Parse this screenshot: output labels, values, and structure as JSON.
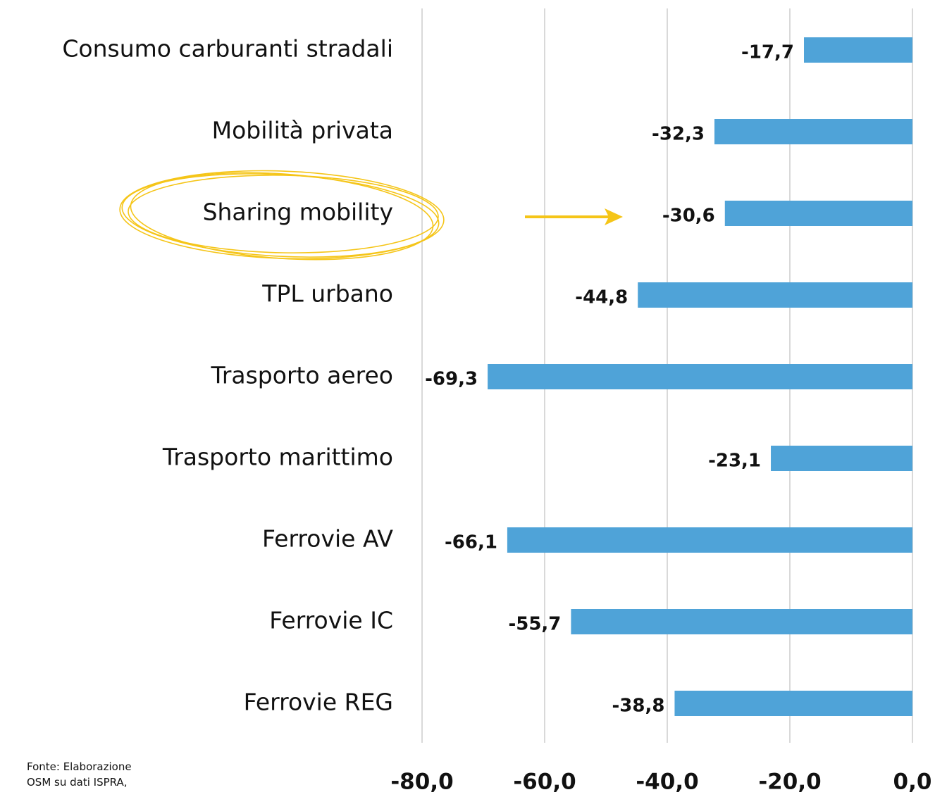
{
  "chart_data": {
    "type": "hbar",
    "categories": [
      "Consumo carburanti stradali",
      "Mobilità privata",
      "Sharing mobility",
      "TPL urbano",
      "Trasporto aereo",
      "Trasporto marittimo",
      "Ferrovie AV",
      "Ferrovie IC",
      "Ferrovie REG"
    ],
    "values": [
      -17.7,
      -32.3,
      -30.6,
      -44.8,
      -69.3,
      -23.1,
      -66.1,
      -55.7,
      -38.8
    ],
    "value_labels": [
      "-17,7",
      "-32,3",
      "-30,6",
      "-44,8",
      "-69,3",
      "-23,1",
      "-66,1",
      "-55,7",
      "-38,8"
    ],
    "color": "#4fa3d8",
    "xlim": [
      -80,
      0
    ],
    "xticks": [
      {
        "value": -80,
        "label": "-80,0"
      },
      {
        "value": -60,
        "label": "-60,0"
      },
      {
        "value": -40,
        "label": "-40,0"
      },
      {
        "value": -20,
        "label": "-20,0"
      },
      {
        "value": 0,
        "label": "0,0"
      }
    ],
    "grid": true,
    "source": [
      "Fonte: Elaborazione",
      "OSM su dati ISPRA,"
    ]
  }
}
